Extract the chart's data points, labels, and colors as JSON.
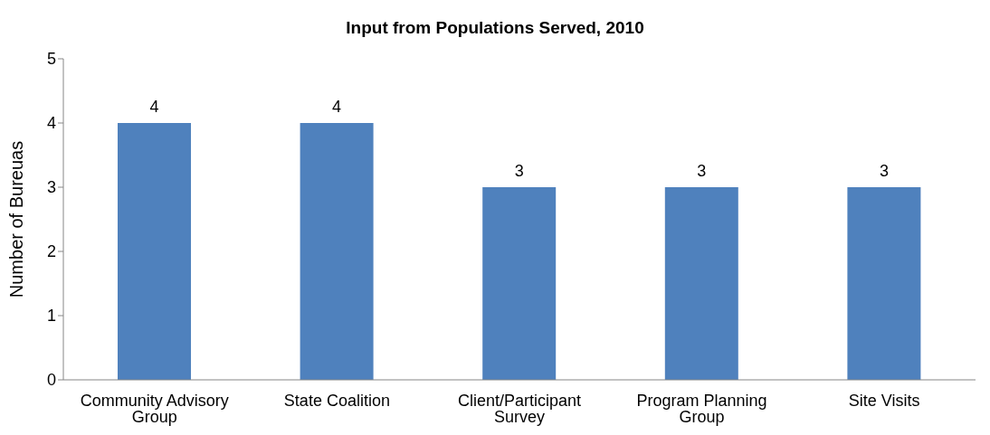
{
  "chart_data": {
    "type": "bar",
    "title": "Input from Populations Served, 2010",
    "ylabel": "Number of Bureuas",
    "categories": [
      "Community Advisory Group",
      "State Coalition",
      "Client/Participant Survey",
      "Program Planning Group",
      "Site Visits"
    ],
    "values": [
      4,
      4,
      3,
      3,
      3
    ],
    "color": "#4f81bd",
    "ylim": [
      0,
      5
    ],
    "yticks": [
      0,
      1,
      2,
      3,
      4,
      5
    ],
    "grid": false,
    "data_labels": true
  }
}
